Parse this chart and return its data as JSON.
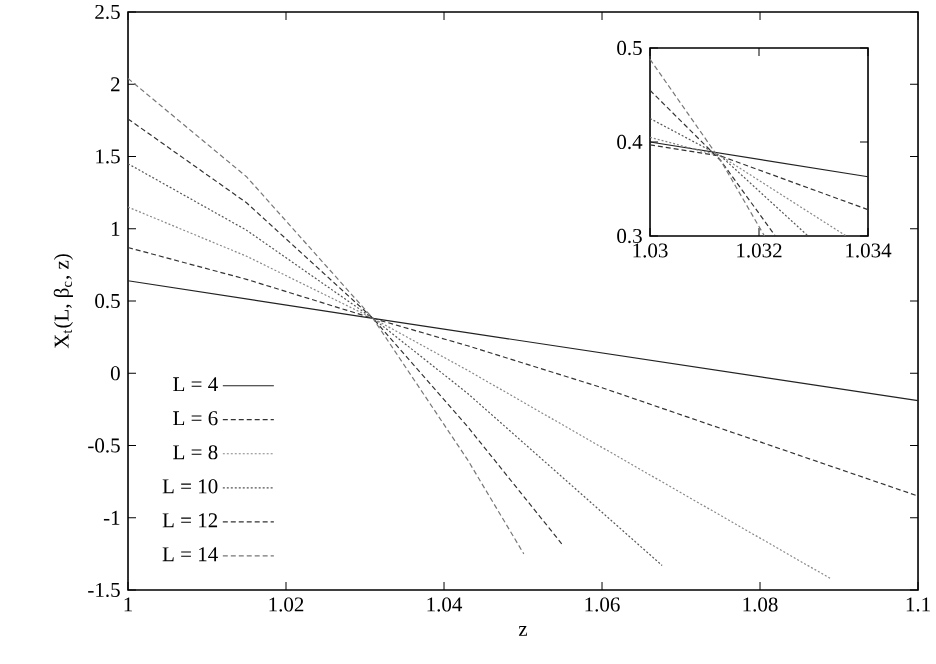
{
  "chart_data": [
    {
      "type": "line",
      "xlabel": "z",
      "ylabel": "X$_{t}$(L, β$_{c}$, z)",
      "xlim": [
        1,
        1.1
      ],
      "ylim": [
        -1.5,
        2.5
      ],
      "xticks": [
        1,
        1.02,
        1.04,
        1.06,
        1.08,
        1.1
      ],
      "yticks": [
        -1.5,
        -1,
        -0.5,
        0,
        0.5,
        1,
        1.5,
        2,
        2.5
      ],
      "legend": "bottom left",
      "series": [
        {
          "name": "L = 4",
          "color": "#222222",
          "line_style": "solid",
          "x": [
            1,
            1.031,
            1.1
          ],
          "values": [
            0.64,
            0.38,
            -0.19
          ]
        },
        {
          "name": "L = 6",
          "color": "#333333",
          "line_style": "dashed",
          "x": [
            1,
            1.015,
            1.031,
            1.043,
            1.06,
            1.1
          ],
          "values": [
            0.87,
            0.65,
            0.38,
            0.19,
            -0.1,
            -0.85
          ]
        },
        {
          "name": "L = 8",
          "color": "#888888",
          "line_style": "dotted",
          "x": [
            1,
            1.015,
            1.031,
            1.043,
            1.0889
          ],
          "values": [
            1.15,
            0.81,
            0.38,
            0.02,
            -1.42
          ]
        },
        {
          "name": "L = 10",
          "color": "#555555",
          "line_style": "dotted",
          "x": [
            1,
            1.015,
            1.031,
            1.043,
            1.0676
          ],
          "values": [
            1.45,
            0.99,
            0.38,
            -0.14,
            -1.33
          ]
        },
        {
          "name": "L = 12",
          "color": "#333333",
          "line_style": "dashed",
          "x": [
            1,
            1.015,
            1.031,
            1.043,
            1.0549
          ],
          "values": [
            1.76,
            1.18,
            0.38,
            -0.37,
            -1.18
          ]
        },
        {
          "name": "L = 14",
          "color": "#777777",
          "line_style": "dashed",
          "x": [
            1,
            1.015,
            1.031,
            1.043,
            1.0501
          ],
          "values": [
            2.04,
            1.36,
            0.38,
            -0.6,
            -1.25
          ]
        }
      ]
    },
    {
      "type": "line",
      "xlim": [
        1.03,
        1.034
      ],
      "ylim": [
        0.3,
        0.5
      ],
      "xticks": [
        1.03,
        1.032,
        1.034
      ],
      "yticks": [
        0.3,
        0.4,
        0.5
      ],
      "series": [
        {
          "color": "#222222",
          "line_style": "solid",
          "x": [
            1.03,
            1.034
          ],
          "values": [
            0.4,
            0.363
          ]
        },
        {
          "color": "#333333",
          "line_style": "dashed",
          "x": [
            1.03,
            1.0313,
            1.034
          ],
          "values": [
            0.397,
            0.385,
            0.328
          ]
        },
        {
          "color": "#888888",
          "line_style": "dotted",
          "x": [
            1.03,
            1.0313,
            1.0336
          ],
          "values": [
            0.405,
            0.385,
            0.3
          ]
        },
        {
          "color": "#555555",
          "line_style": "dotted",
          "x": [
            1.03,
            1.0313,
            1.0329
          ],
          "values": [
            0.425,
            0.385,
            0.3
          ]
        },
        {
          "color": "#333333",
          "line_style": "dashed",
          "x": [
            1.03,
            1.0313,
            1.0323
          ],
          "values": [
            0.455,
            0.38,
            0.3
          ]
        },
        {
          "color": "#777777",
          "line_style": "dashed",
          "x": [
            1.03,
            1.0313,
            1.0321
          ],
          "values": [
            0.488,
            0.38,
            0.3
          ]
        }
      ]
    }
  ]
}
